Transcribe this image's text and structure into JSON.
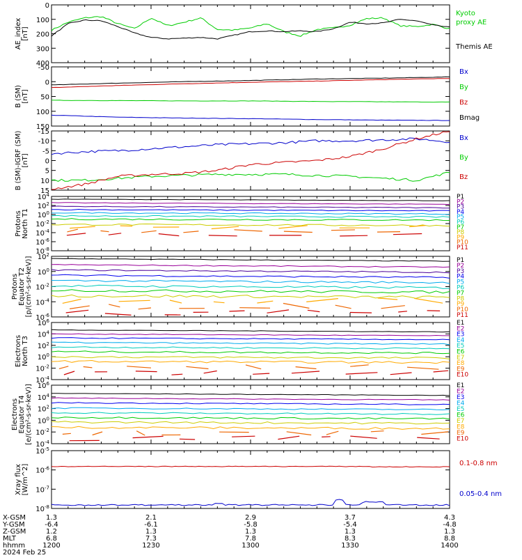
{
  "chart_data": [
    {
      "type": "line",
      "ylabel": "AE_Index [nT]",
      "ylim": [
        0,
        400
      ],
      "yticks": [
        "0",
        "100",
        "200",
        "300",
        "400"
      ],
      "x": [
        "12:00",
        "12:05",
        "12:10",
        "12:15",
        "12:20",
        "12:25",
        "12:30",
        "12:35",
        "12:40",
        "12:45",
        "12:50",
        "12:55",
        "13:00",
        "13:05",
        "13:10",
        "13:15",
        "13:20",
        "13:25",
        "13:30",
        "13:35",
        "13:40",
        "13:45",
        "13:50",
        "13:55",
        "14:00"
      ],
      "series": [
        {
          "name": "Kyoto proxy AE",
          "color": "#00cc00",
          "values": [
            225,
            280,
            310,
            320,
            270,
            235,
            310,
            255,
            280,
            310,
            230,
            225,
            240,
            270,
            215,
            185,
            230,
            240,
            260,
            305,
            310,
            255,
            250,
            265,
            235
          ]
        },
        {
          "name": "Themis AE",
          "color": "#000000",
          "values": [
            185,
            270,
            295,
            290,
            250,
            205,
            175,
            165,
            170,
            175,
            165,
            190,
            215,
            220,
            215,
            220,
            215,
            235,
            280,
            270,
            275,
            300,
            290,
            260,
            245
          ]
        }
      ],
      "labels_right": [
        "Kyoto proxy AE",
        "Themis AE"
      ]
    },
    {
      "type": "line",
      "ylabel": "B (SM) [nT]",
      "ylim": [
        -50,
        150
      ],
      "yticks": [
        "-50",
        "0",
        "50",
        "100",
        "150"
      ],
      "series": [
        {
          "name": "Bx",
          "color": "#0000cc",
          "values": [
            -13,
            -20,
            -23,
            -25,
            -28,
            -30,
            -31
          ]
        },
        {
          "name": "By",
          "color": "#00cc00",
          "values": [
            37,
            36,
            35,
            35,
            33,
            32,
            31
          ]
        },
        {
          "name": "Bz",
          "color": "#cc0000",
          "values": [
            80,
            87,
            93,
            98,
            102,
            107,
            111
          ]
        },
        {
          "name": "Bmag",
          "color": "#000000",
          "values": [
            89,
            95,
            100,
            104,
            109,
            112,
            116
          ]
        }
      ]
    },
    {
      "type": "line",
      "ylabel": "B (SM)-IGRF (SM) [nT]",
      "ylim": [
        -15,
        15
      ],
      "yticks": [
        "-15",
        "-10",
        "-5",
        "0",
        "5",
        "10",
        "15"
      ],
      "series": [
        {
          "name": "Bx",
          "color": "#0000cc",
          "values": [
            3.5,
            4.5,
            5,
            6,
            7,
            8,
            8.5,
            9,
            10,
            10,
            10.5,
            11,
            9.5
          ]
        },
        {
          "name": "By",
          "color": "#00cc00",
          "values": [
            -10,
            -10,
            -9,
            -8,
            -7.5,
            -7,
            -7,
            -7,
            -7.5,
            -8,
            -9,
            -10,
            -6
          ]
        },
        {
          "name": "Bz",
          "color": "#cc0000",
          "values": [
            -14.5,
            -12,
            -8,
            -7,
            -6.5,
            -5,
            -2,
            -1,
            0,
            2,
            6,
            11,
            15
          ]
        }
      ]
    },
    {
      "type": "line",
      "ylabel": "Protons North T1",
      "log_scale": true,
      "ylim": [
        "10^-8",
        "10^4"
      ],
      "yticks": [
        "10^4",
        "10^2",
        "10^0",
        "10^-2",
        "10^-4",
        "10^-6",
        "10^-8"
      ],
      "series_names": [
        "P1",
        "P2",
        "P3",
        "P4",
        "P5",
        "P6",
        "P7",
        "P8",
        "P9",
        "P10",
        "P11"
      ]
    },
    {
      "type": "line",
      "ylabel": "Protons Equator T2 [p/(cm^2-s-sr-keV)]",
      "log_scale": true,
      "ylim": [
        "10^-6",
        "10^2"
      ],
      "yticks": [
        "10^2",
        "10^0",
        "10^-2",
        "10^-4",
        "10^-6"
      ],
      "series_names": [
        "P1",
        "P2",
        "P3",
        "P4",
        "P5",
        "P6",
        "P7",
        "P8",
        "P9",
        "P10",
        "P11"
      ]
    },
    {
      "type": "line",
      "ylabel": "Electrons North T3",
      "log_scale": true,
      "ylim": [
        "10^-4",
        "10^6"
      ],
      "yticks": [
        "10^6",
        "10^4",
        "10^2",
        "10^0",
        "10^-2",
        "10^-4"
      ],
      "series_names": [
        "E1",
        "E2",
        "E3",
        "E4",
        "E5",
        "E6",
        "E7",
        "E8",
        "E9",
        "E10"
      ]
    },
    {
      "type": "line",
      "ylabel": "Electrons Equator T4 [e/(cm^2-s-sr-keV)]",
      "log_scale": true,
      "ylim": [
        "10^-4",
        "10^6"
      ],
      "yticks": [
        "10^6",
        "10^4",
        "10^2",
        "10^0",
        "10^-2",
        "10^-4"
      ],
      "series_names": [
        "E1",
        "E2",
        "E3",
        "E4",
        "E5",
        "E6",
        "E7",
        "E8",
        "E9",
        "E10"
      ]
    },
    {
      "type": "line",
      "ylabel": "Xray flux [W/m^2]",
      "log_scale": true,
      "ylim": [
        "10^-8",
        "10^-5"
      ],
      "yticks": [
        "10^-5",
        "10^-6",
        "10^-7",
        "10^-8"
      ],
      "series": [
        {
          "name": "0.1-0.8 nm",
          "color": "#cc0000"
        },
        {
          "name": "0.05-0.4 nm",
          "color": "#0000cc"
        }
      ]
    }
  ],
  "colors": {
    "P": [
      "#000000",
      "#990099",
      "#4b0099",
      "#0000ee",
      "#00aaee",
      "#00ccbb",
      "#00cc00",
      "#cccc00",
      "#ffaa00",
      "#ee6600",
      "#cc0000"
    ],
    "E": [
      "#000000",
      "#990099",
      "#0000ee",
      "#00aaee",
      "#00ccbb",
      "#00cc00",
      "#cccc00",
      "#ffaa00",
      "#ee6600",
      "#cc0000"
    ]
  },
  "legend_labels": {
    "panel_1": [
      "Kyoto",
      "proxy AE",
      "Themis AE"
    ],
    "panel_2": [
      "Bx",
      "By",
      "Bz",
      "Bmag"
    ],
    "panel_3": [
      "Bx",
      "By",
      "Bz"
    ],
    "panel_4": [
      "P1",
      "P2",
      "P3",
      "P4",
      "P5",
      "P6",
      "P7",
      "P8",
      "P9",
      "P10",
      "P11"
    ],
    "panel_5": [
      "P1",
      "P2",
      "P3",
      "P4",
      "P5",
      "P6",
      "P7",
      "P8",
      "P9",
      "P10",
      "P11"
    ],
    "panel_6": [
      "E1",
      "E2",
      "E3",
      "E4",
      "E5",
      "E6",
      "E7",
      "E8",
      "E9",
      "E10"
    ],
    "panel_7": [
      "E1",
      "E2",
      "E3",
      "E4",
      "E5",
      "E6",
      "E7",
      "E8",
      "E9",
      "E10"
    ],
    "panel_8": [
      "0.1-0.8 nm",
      "0.05-0.4 nm"
    ]
  },
  "ylabels": {
    "panel_1": [
      "AE_index",
      "[nT]"
    ],
    "panel_2": [
      "B (SM)",
      "[nT]"
    ],
    "panel_3": [
      "B (SM)-IGRF (SM)",
      "[nT]"
    ],
    "panel_4": [
      "Protons",
      "North T1"
    ],
    "panel_5": [
      "Protons",
      "Equator T2",
      "[p/(cm²-s-sr-keV)]"
    ],
    "panel_6": [
      "Electrons",
      "North T3"
    ],
    "panel_7": [
      "Electrons",
      "Equator T4",
      "[e/(cm²-s-sr-keV)]"
    ],
    "panel_8": [
      "Xray flux",
      "[W/m^2]"
    ]
  },
  "ephemeris": {
    "row_labels": [
      "X-GSM",
      "Y-GSM",
      "Z-GSM",
      "MLT",
      "hhmm",
      "2024 Feb 25"
    ],
    "columns": [
      {
        "X-GSM": "1.3",
        "Y-GSM": "-6.4",
        "Z-GSM": "1.2",
        "MLT": "6.8",
        "hhmm": "1200"
      },
      {
        "X-GSM": "2.1",
        "Y-GSM": "-6.1",
        "Z-GSM": "1.3",
        "MLT": "7.3",
        "hhmm": "1230"
      },
      {
        "X-GSM": "2.9",
        "Y-GSM": "-5.8",
        "Z-GSM": "1.3",
        "MLT": "7.8",
        "hhmm": "1300"
      },
      {
        "X-GSM": "3.7",
        "Y-GSM": "-5.4",
        "Z-GSM": "1.3",
        "MLT": "8.3",
        "hhmm": "1330"
      },
      {
        "X-GSM": "4.3",
        "Y-GSM": "-4.8",
        "Z-GSM": "1.3",
        "MLT": "8.8",
        "hhmm": "1400"
      }
    ]
  }
}
